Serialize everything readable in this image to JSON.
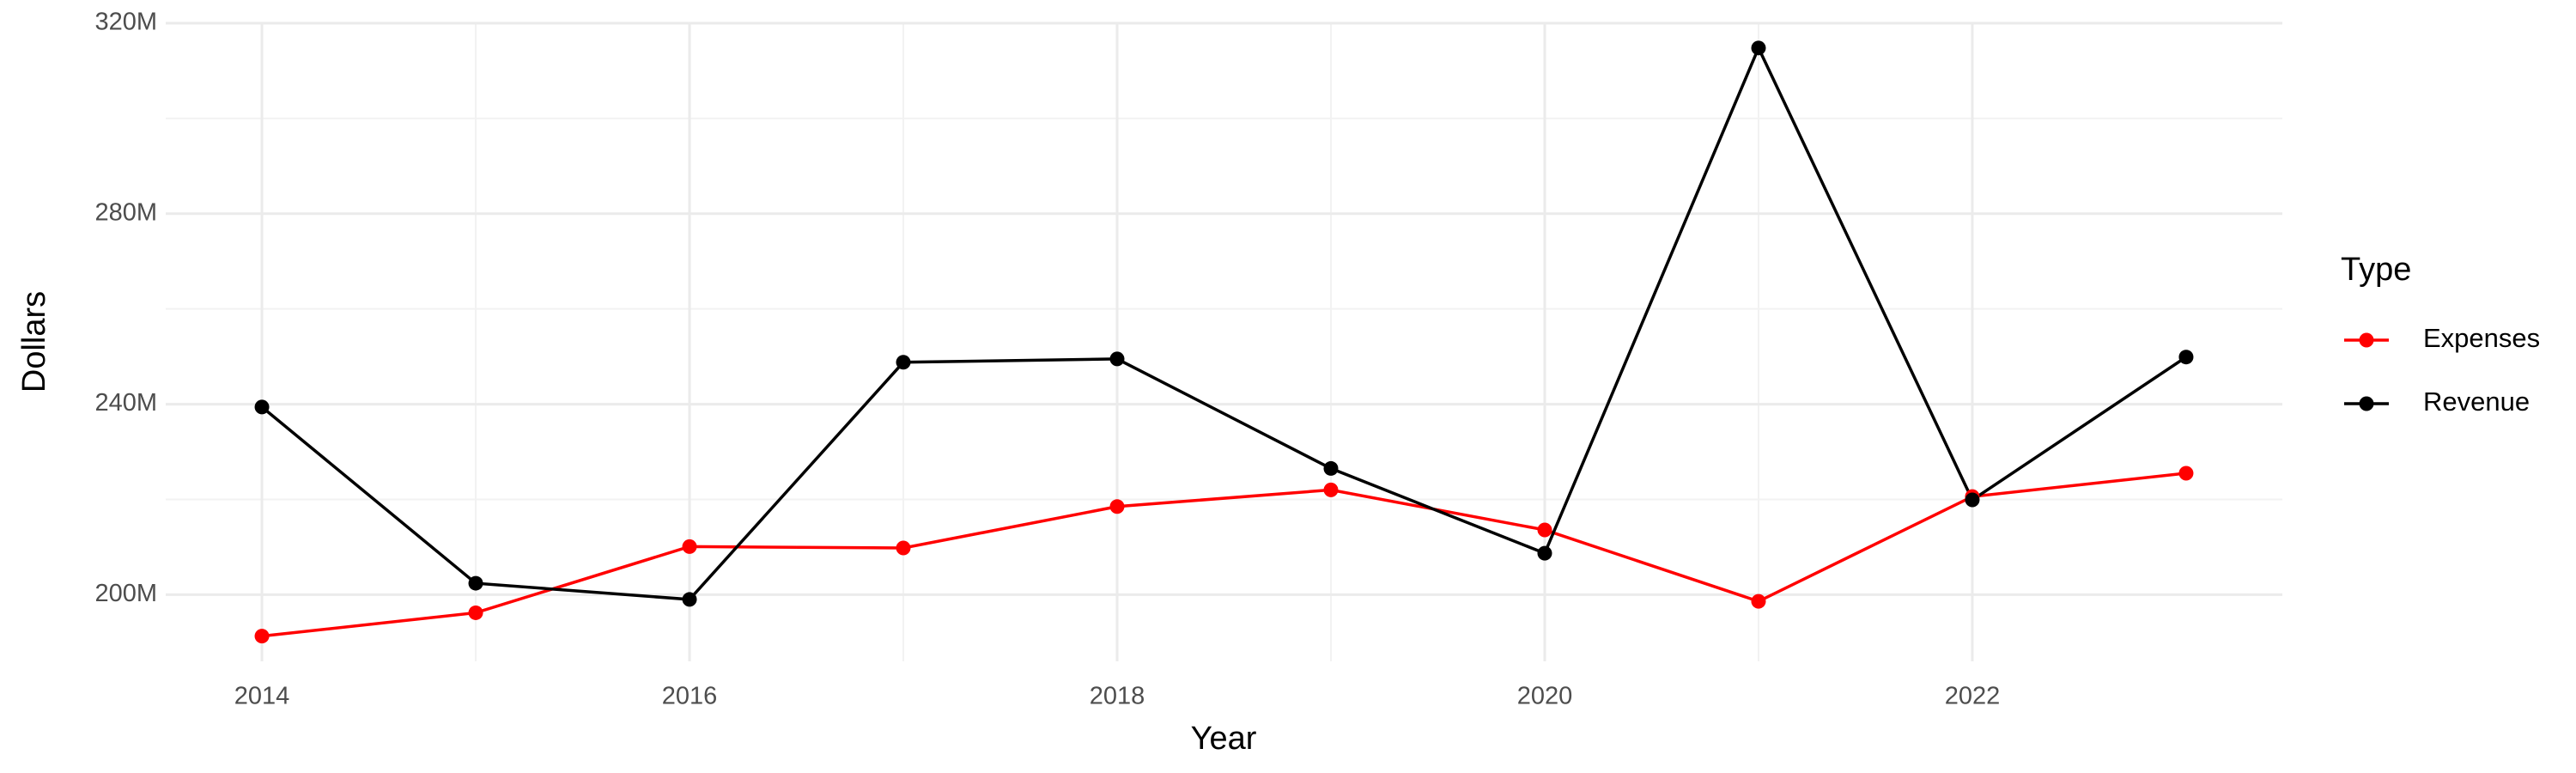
{
  "chart_data": {
    "type": "line",
    "x_label": "Year",
    "y_label": "Dollars",
    "legend_title": "Type",
    "x": [
      2014,
      2015,
      2016,
      2017,
      2018,
      2019,
      2020,
      2021,
      2022,
      2023
    ],
    "series": [
      {
        "name": "Expenses",
        "color": "#ff0000",
        "values": [
          191300000,
          196200000,
          210100000,
          209800000,
          218500000,
          222000000,
          213600000,
          198600000,
          220600000,
          225500000
        ]
      },
      {
        "name": "Revenue",
        "color": "#000000",
        "values": [
          239400000,
          202400000,
          199000000,
          248800000,
          249500000,
          226500000,
          208700000,
          314800000,
          219900000,
          249900000
        ]
      }
    ],
    "xlim": [
      2013.55,
      2023.45
    ],
    "xticks": [
      2014,
      2016,
      2018,
      2020,
      2022
    ],
    "ylim": [
      186000000,
      320000000
    ],
    "yticks": [
      {
        "value": 200000000,
        "label": "200M"
      },
      {
        "value": 240000000,
        "label": "240M"
      },
      {
        "value": 280000000,
        "label": "280M"
      },
      {
        "value": 320000000,
        "label": "320M"
      }
    ],
    "grid": true,
    "legend": "right"
  }
}
